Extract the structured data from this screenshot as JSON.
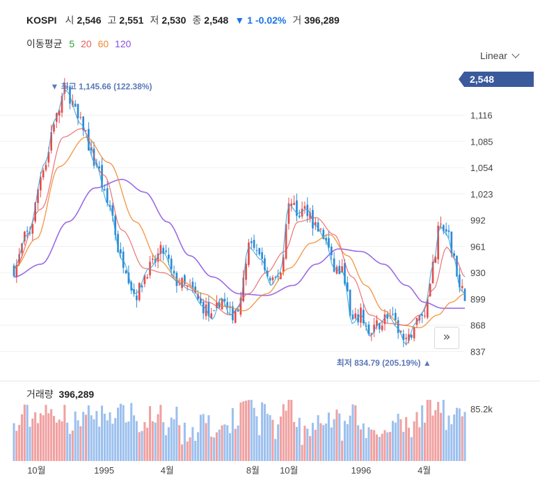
{
  "header": {
    "symbol": "KOSPI",
    "open_label": "시",
    "open": "2,546",
    "high_label": "고",
    "high": "2,551",
    "low_label": "저",
    "low": "2,530",
    "close_label": "종",
    "close": "2,548",
    "change_icon": "down-triangle-icon",
    "change": "1",
    "change_pct": "-0.02%",
    "volume_label": "거",
    "volume": "396,289"
  },
  "moving_average": {
    "title": "이동평균",
    "periods": [
      {
        "label": "5",
        "color": "#2e9d3a"
      },
      {
        "label": "20",
        "color": "#e85a5a"
      },
      {
        "label": "60",
        "color": "#f08a2c"
      },
      {
        "label": "120",
        "color": "#8a4fe0"
      }
    ]
  },
  "scale_selector": {
    "label": "Linear",
    "icon": "chevron-down-icon"
  },
  "current_price_tag": "2,548",
  "nav_button": {
    "label": "»",
    "icon": "double-chevron-right-icon"
  },
  "volume_panel": {
    "title": "거래량",
    "value": "396,289"
  },
  "colors": {
    "up": "#e84a4a",
    "down": "#2a8ad8",
    "close_line": "#34a6d6",
    "vol_up": "#f0a0a0",
    "vol_down": "#9cc0ee",
    "tag": "#3a5a9c",
    "annotation": "#5a78b8"
  },
  "chart_data": {
    "type": "line",
    "title": "KOSPI",
    "xlabel": "",
    "ylabel": "",
    "y_axis_ticks": [
      "1,116",
      "1,085",
      "1,054",
      "1,023",
      "992",
      "961",
      "930",
      "899",
      "868",
      "837"
    ],
    "ylim": [
      825,
      1155
    ],
    "x_axis_ticks": [
      {
        "label": "10월",
        "t": 0.05
      },
      {
        "label": "1995",
        "t": 0.2
      },
      {
        "label": "4월",
        "t": 0.34
      },
      {
        "label": "8월",
        "t": 0.53
      },
      {
        "label": "10월",
        "t": 0.61
      },
      {
        "label": "1996",
        "t": 0.77
      },
      {
        "label": "4월",
        "t": 0.91
      }
    ],
    "annotations": {
      "high": {
        "label": "최고 1,145.66 (122.38%)",
        "value": 1145.66,
        "t": 0.115
      },
      "low": {
        "label": "최저 834.79 (205.19%)",
        "value": 834.79,
        "t": 0.87
      }
    },
    "close_anchors": [
      [
        0.0,
        935
      ],
      [
        0.03,
        975
      ],
      [
        0.07,
        1060
      ],
      [
        0.09,
        1110
      ],
      [
        0.115,
        1145
      ],
      [
        0.15,
        1105
      ],
      [
        0.18,
        1060
      ],
      [
        0.21,
        1010
      ],
      [
        0.24,
        945
      ],
      [
        0.27,
        905
      ],
      [
        0.3,
        935
      ],
      [
        0.33,
        955
      ],
      [
        0.36,
        920
      ],
      [
        0.39,
        910
      ],
      [
        0.42,
        890
      ],
      [
        0.44,
        875
      ],
      [
        0.46,
        900
      ],
      [
        0.48,
        880
      ],
      [
        0.5,
        890
      ],
      [
        0.52,
        960
      ],
      [
        0.55,
        945
      ],
      [
        0.57,
        915
      ],
      [
        0.59,
        930
      ],
      [
        0.61,
        1010
      ],
      [
        0.63,
        1000
      ],
      [
        0.65,
        1005
      ],
      [
        0.67,
        985
      ],
      [
        0.69,
        970
      ],
      [
        0.71,
        935
      ],
      [
        0.73,
        930
      ],
      [
        0.75,
        870
      ],
      [
        0.77,
        880
      ],
      [
        0.79,
        855
      ],
      [
        0.81,
        870
      ],
      [
        0.83,
        880
      ],
      [
        0.85,
        865
      ],
      [
        0.87,
        845
      ],
      [
        0.89,
        870
      ],
      [
        0.91,
        885
      ],
      [
        0.93,
        940
      ],
      [
        0.945,
        985
      ],
      [
        0.96,
        975
      ],
      [
        0.975,
        950
      ],
      [
        0.99,
        910
      ],
      [
        1.0,
        905
      ]
    ],
    "ma20_anchors": [
      [
        0.0,
        935
      ],
      [
        0.06,
        1005
      ],
      [
        0.11,
        1090
      ],
      [
        0.15,
        1100
      ],
      [
        0.2,
        1045
      ],
      [
        0.24,
        980
      ],
      [
        0.29,
        935
      ],
      [
        0.33,
        930
      ],
      [
        0.38,
        915
      ],
      [
        0.43,
        895
      ],
      [
        0.48,
        880
      ],
      [
        0.52,
        905
      ],
      [
        0.56,
        930
      ],
      [
        0.6,
        955
      ],
      [
        0.63,
        990
      ],
      [
        0.67,
        995
      ],
      [
        0.71,
        975
      ],
      [
        0.75,
        925
      ],
      [
        0.79,
        880
      ],
      [
        0.83,
        870
      ],
      [
        0.87,
        868
      ],
      [
        0.9,
        880
      ],
      [
        0.93,
        910
      ],
      [
        0.96,
        960
      ],
      [
        0.98,
        945
      ],
      [
        1.0,
        925
      ]
    ],
    "ma60_anchors": [
      [
        0.0,
        935
      ],
      [
        0.05,
        970
      ],
      [
        0.1,
        1055
      ],
      [
        0.16,
        1090
      ],
      [
        0.21,
        1060
      ],
      [
        0.27,
        990
      ],
      [
        0.32,
        945
      ],
      [
        0.37,
        920
      ],
      [
        0.42,
        905
      ],
      [
        0.47,
        890
      ],
      [
        0.51,
        885
      ],
      [
        0.56,
        905
      ],
      [
        0.61,
        935
      ],
      [
        0.66,
        965
      ],
      [
        0.7,
        975
      ],
      [
        0.74,
        950
      ],
      [
        0.78,
        915
      ],
      [
        0.82,
        885
      ],
      [
        0.86,
        868
      ],
      [
        0.9,
        865
      ],
      [
        0.94,
        880
      ],
      [
        0.97,
        895
      ],
      [
        1.0,
        905
      ]
    ],
    "ma120_anchors": [
      [
        0.0,
        925
      ],
      [
        0.06,
        940
      ],
      [
        0.12,
        990
      ],
      [
        0.18,
        1030
      ],
      [
        0.24,
        1040
      ],
      [
        0.29,
        1025
      ],
      [
        0.34,
        990
      ],
      [
        0.39,
        950
      ],
      [
        0.44,
        925
      ],
      [
        0.5,
        905
      ],
      [
        0.56,
        903
      ],
      [
        0.62,
        915
      ],
      [
        0.67,
        940
      ],
      [
        0.72,
        958
      ],
      [
        0.77,
        955
      ],
      [
        0.82,
        940
      ],
      [
        0.87,
        915
      ],
      [
        0.91,
        895
      ],
      [
        0.95,
        888
      ],
      [
        1.0,
        888
      ]
    ],
    "volume_scale_label": "85.2k",
    "volume_max": 85200
  }
}
